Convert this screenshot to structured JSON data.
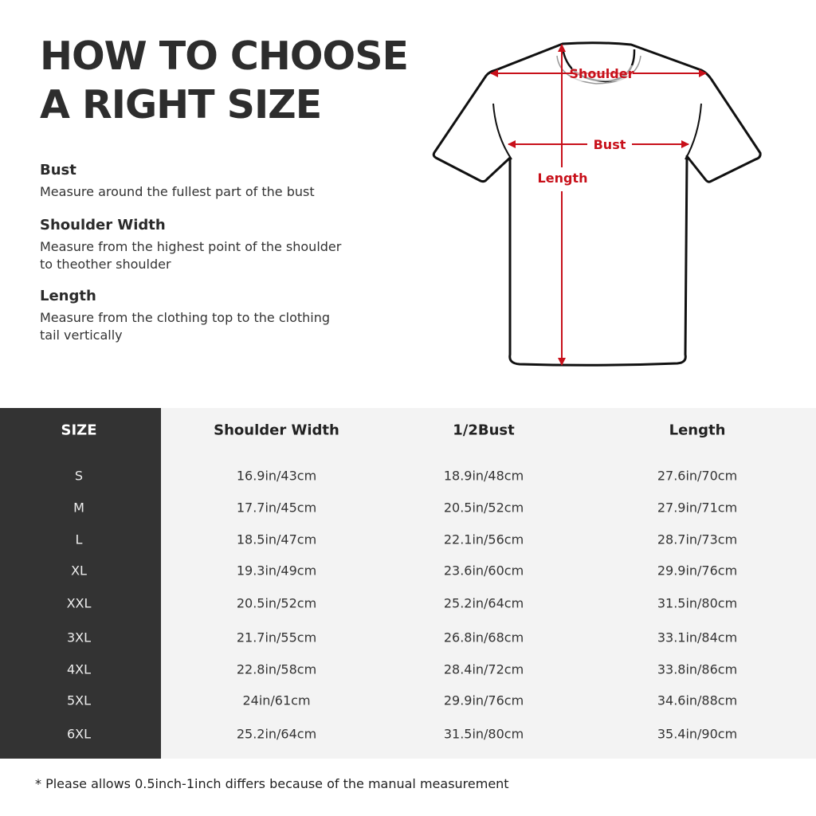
{
  "title": {
    "line1": "HOW TO CHOOSE",
    "line2": "A RIGHT SIZE"
  },
  "guide": [
    {
      "heading": "Bust",
      "text": "Measure around the fullest part of the bust"
    },
    {
      "heading": "Shoulder Width",
      "text": "Measure from the highest point of the shoulder to theother shoulder"
    },
    {
      "heading": "Length",
      "text": "Measure from the clothing top to the clothing tail vertically"
    }
  ],
  "diagram": {
    "shoulder": "Shoulder",
    "bust": "Bust",
    "length": "Length",
    "accent": "#c8101a"
  },
  "table": {
    "headers": [
      "SIZE",
      "Shoulder Width",
      "1/2Bust",
      "Length"
    ],
    "rows": [
      [
        "S",
        "16.9in/43cm",
        "18.9in/48cm",
        "27.6in/70cm"
      ],
      [
        "M",
        "17.7in/45cm",
        "20.5in/52cm",
        "27.9in/71cm"
      ],
      [
        "L",
        "18.5in/47cm",
        "22.1in/56cm",
        "28.7in/73cm"
      ],
      [
        "XL",
        "19.3in/49cm",
        "23.6in/60cm",
        "29.9in/76cm"
      ],
      [
        "XXL",
        "20.5in/52cm",
        "25.2in/64cm",
        "31.5in/80cm"
      ],
      [
        "3XL",
        "21.7in/55cm",
        "26.8in/68cm",
        "33.1in/84cm"
      ],
      [
        "4XL",
        "22.8in/58cm",
        "28.4in/72cm",
        "33.8in/86cm"
      ],
      [
        "5XL",
        "24in/61cm",
        "29.9in/76cm",
        "34.6in/88cm"
      ],
      [
        "6XL",
        "25.2in/64cm",
        "31.5in/80cm",
        "35.4in/90cm"
      ]
    ]
  },
  "note": "* Please allows 0.5inch-1inch differs because of the  manual measurement"
}
